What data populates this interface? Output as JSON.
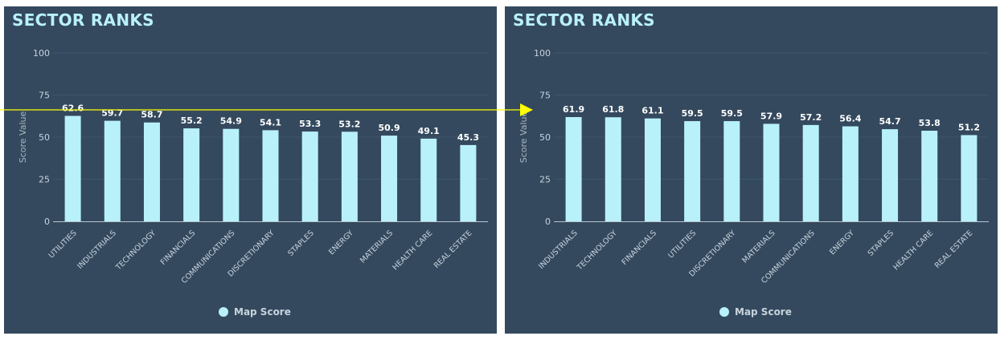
{
  "chart_data": [
    {
      "type": "bar",
      "title": "SECTOR RANKS",
      "ylabel": "Score Value",
      "xlabel": "",
      "ylim": [
        0,
        100
      ],
      "yticks": [
        0,
        25,
        50,
        75,
        100
      ],
      "grid": true,
      "legend_position": "bottom",
      "series": [
        {
          "name": "Map Score",
          "color": "#b9f1fb",
          "values": [
            62.6,
            59.7,
            58.7,
            55.2,
            54.9,
            54.1,
            53.3,
            53.2,
            50.9,
            49.1,
            45.3
          ]
        }
      ],
      "categories": [
        "UTILITIES",
        "INDUSTRIALS",
        "TECHNOLOGY",
        "FINANCIALS",
        "COMMUNICATIONS",
        "DISCRETIONARY",
        "STAPLES",
        "ENERGY",
        "MATERIALS",
        "HEALTH CARE",
        "REAL ESTATE"
      ]
    },
    {
      "type": "bar",
      "title": "SECTOR RANKS",
      "ylabel": "Score Value",
      "xlabel": "",
      "ylim": [
        0,
        100
      ],
      "yticks": [
        0,
        25,
        50,
        75,
        100
      ],
      "grid": true,
      "legend_position": "bottom",
      "series": [
        {
          "name": "Map Score",
          "color": "#b9f1fb",
          "values": [
            61.9,
            61.8,
            61.1,
            59.5,
            59.5,
            57.9,
            57.2,
            56.4,
            54.7,
            53.8,
            51.2
          ]
        }
      ],
      "categories": [
        "INDUSTRIALS",
        "TECHNOLOGY",
        "FINANCIALS",
        "UTILITIES",
        "DISCRETIONARY",
        "MATERIALS",
        "COMMUNICATIONS",
        "ENERGY",
        "STAPLES",
        "HEALTH CARE",
        "REAL ESTATE"
      ]
    }
  ],
  "colors": {
    "background": "#34495e",
    "bar": "#b9f1fb",
    "annotation_arrow": "#ffff00"
  }
}
